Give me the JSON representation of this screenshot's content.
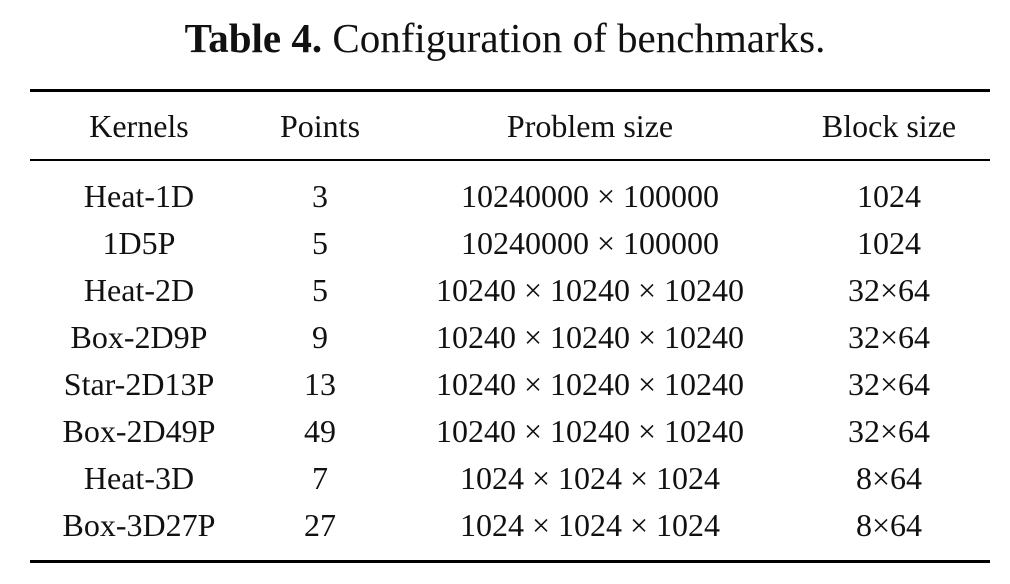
{
  "caption": {
    "label": "Table 4.",
    "text": "Configuration of benchmarks."
  },
  "table": {
    "columns": [
      "Kernels",
      "Points",
      "Problem size",
      "Block size"
    ],
    "rows": [
      [
        "Heat-1D",
        "3",
        "10240000 × 100000",
        "1024"
      ],
      [
        "1D5P",
        "5",
        "10240000 × 100000",
        "1024"
      ],
      [
        "Heat-2D",
        "5",
        "10240 × 10240 × 10240",
        "32×64"
      ],
      [
        "Box-2D9P",
        "9",
        "10240 × 10240 × 10240",
        "32×64"
      ],
      [
        "Star-2D13P",
        "13",
        "10240 × 10240 × 10240",
        "32×64"
      ],
      [
        "Box-2D49P",
        "49",
        "10240 × 10240 × 10240",
        "32×64"
      ],
      [
        "Heat-3D",
        "7",
        "1024 × 1024 × 1024",
        "8×64"
      ],
      [
        "Box-3D27P",
        "27",
        "1024 × 1024 × 1024",
        "8×64"
      ]
    ]
  }
}
